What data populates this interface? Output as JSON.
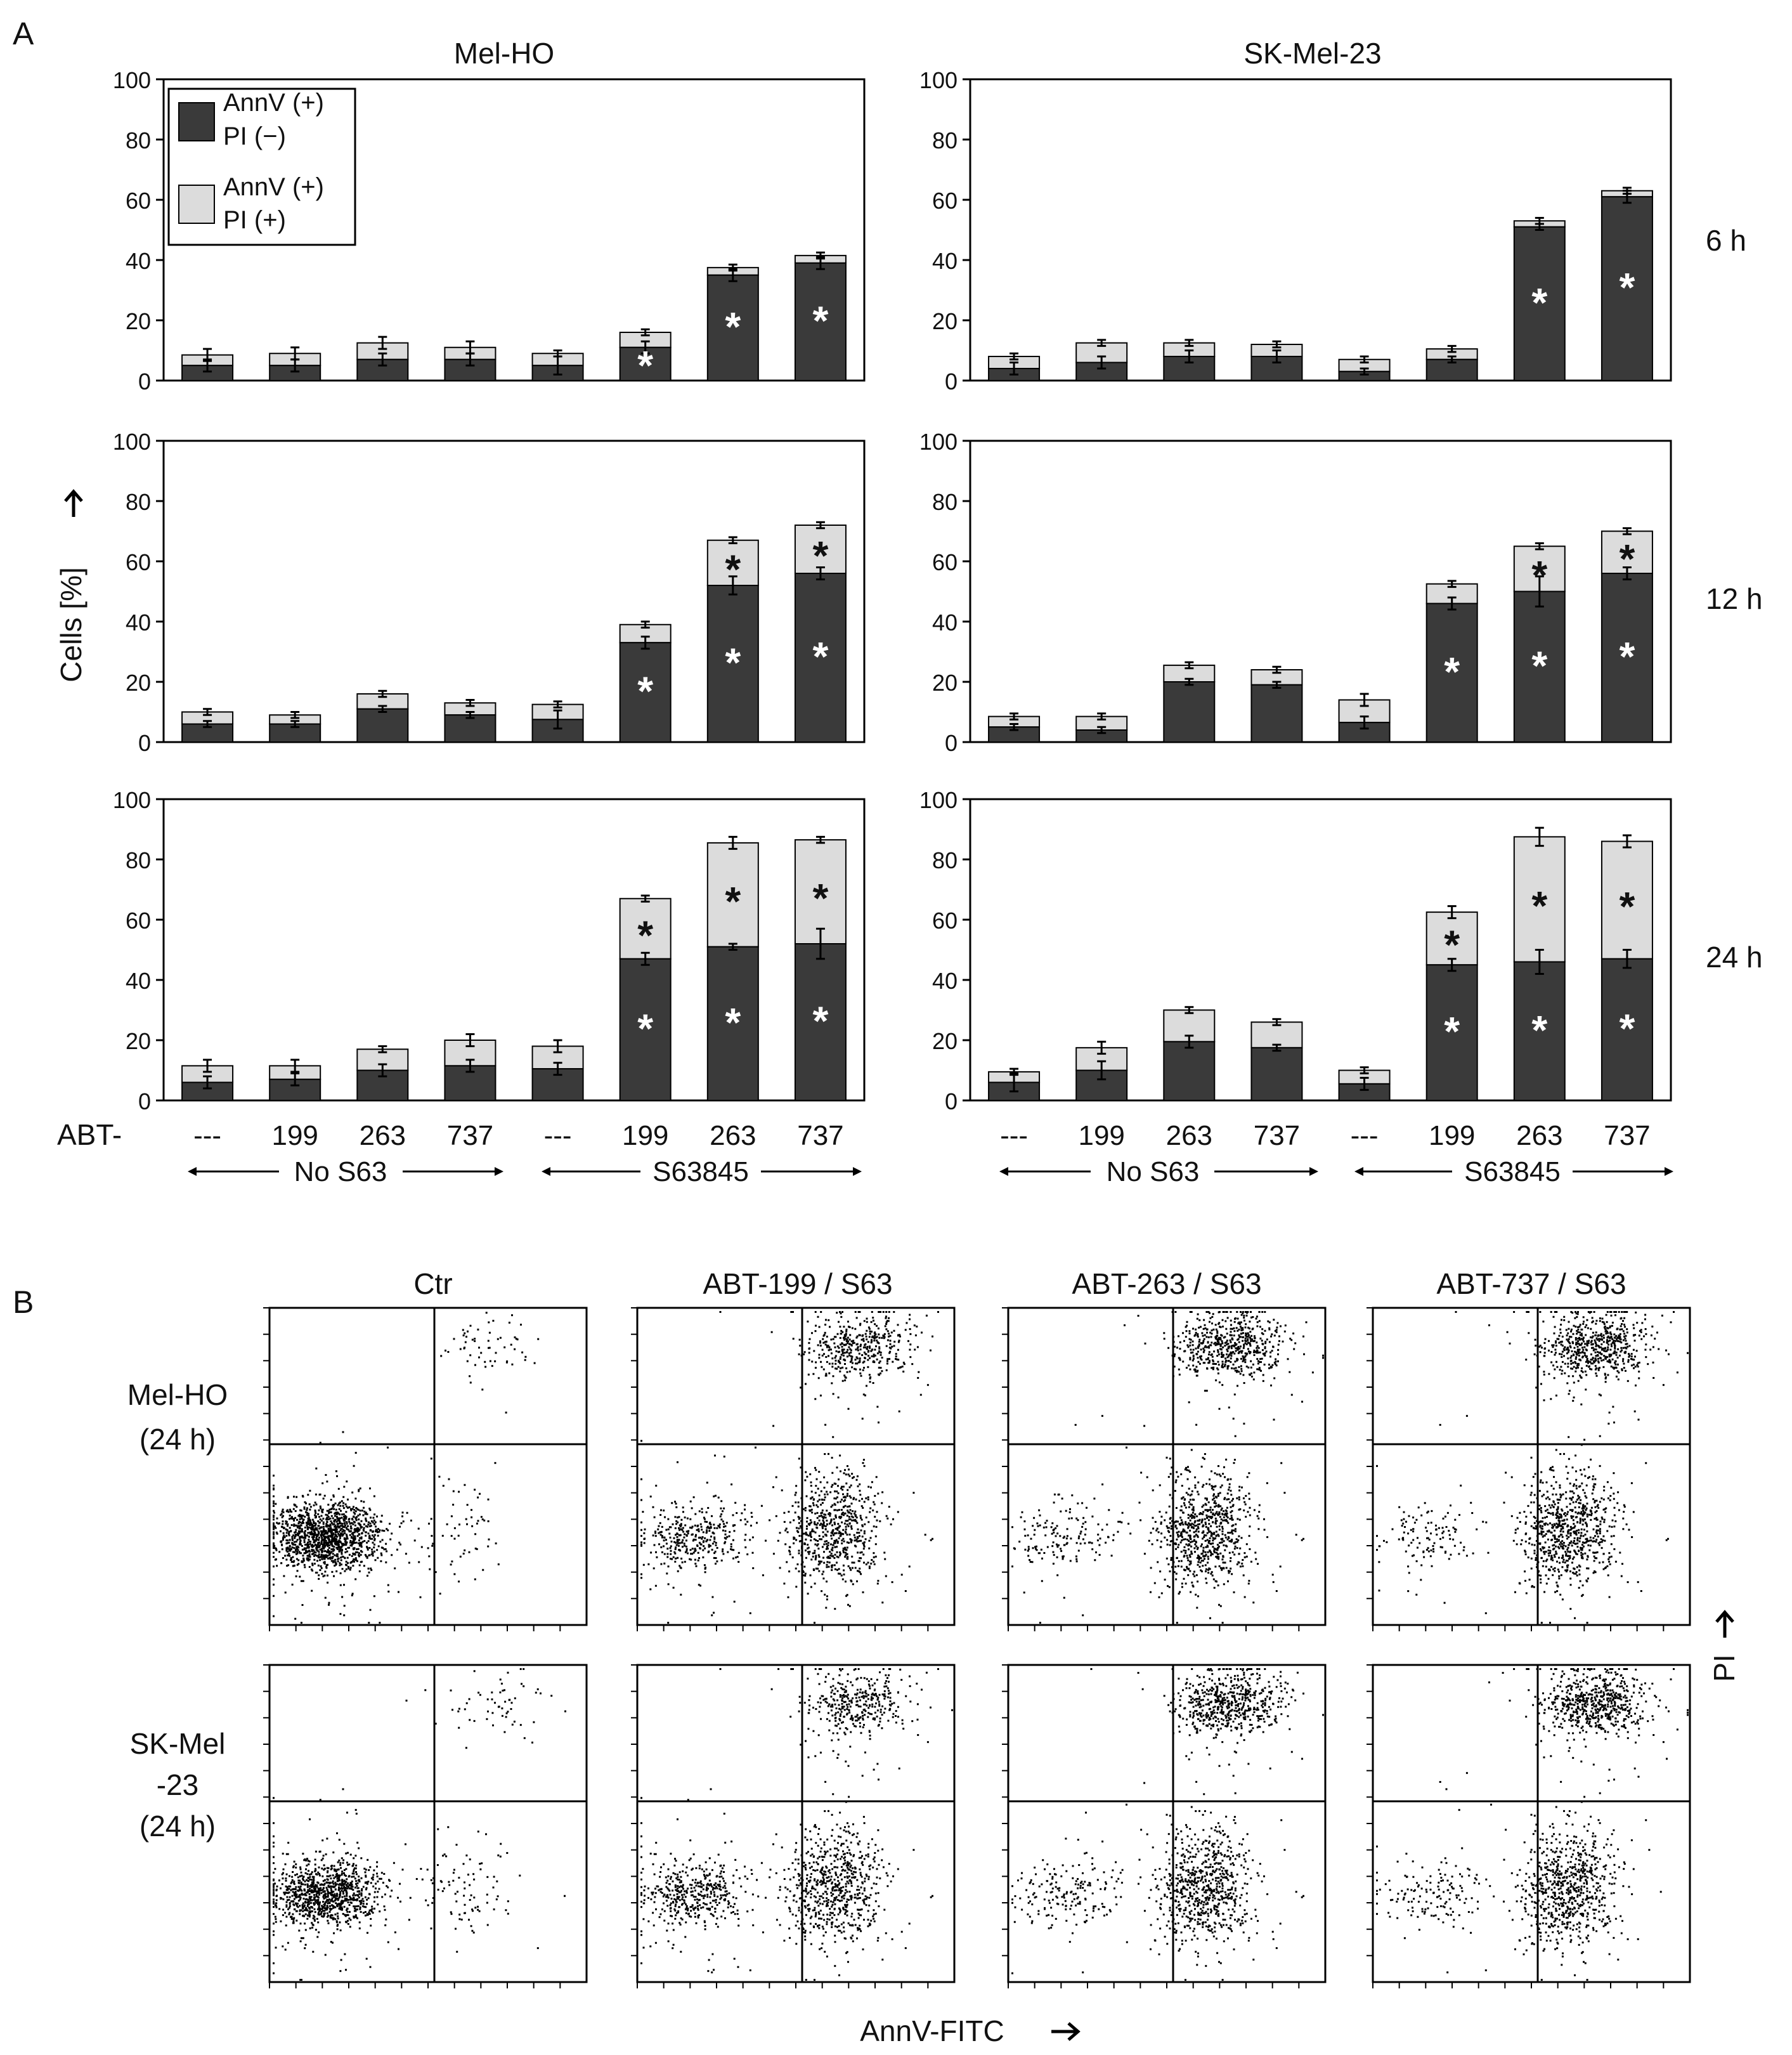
{
  "colors": {
    "dark": "#3a3a3a",
    "light": "#dcdcdc",
    "axis": "#000000"
  },
  "panel_labels": {
    "a": "A",
    "b": "B"
  },
  "panelA": {
    "cell_lines": [
      "Mel-HO",
      "SK-Mel-23"
    ],
    "times": [
      "6 h",
      "12 h",
      "24 h"
    ],
    "ylabel": "Cells [%]",
    "y_ticks": [
      "0",
      "20",
      "40",
      "60",
      "80",
      "100"
    ],
    "row_label": "ABT-",
    "categories": [
      "---",
      "199",
      "263",
      "737",
      "---",
      "199",
      "263",
      "737"
    ],
    "groups": [
      "No S63",
      "S63845"
    ],
    "legend": [
      {
        "line1": "AnnV (+)",
        "line2": "PI (−)"
      },
      {
        "line1": "AnnV (+)",
        "line2": "PI (+)"
      }
    ]
  },
  "panelB": {
    "columns": [
      "Ctr",
      "ABT-199 / S63",
      "ABT-263 / S63",
      "ABT-737 / S63"
    ],
    "rows": [
      [
        "Mel-HO",
        "(24 h)"
      ],
      [
        "SK-Mel",
        "-23",
        "(24 h)"
      ]
    ],
    "xlabel": "AnnV-FITC",
    "ylabel": "PI"
  },
  "chart_data": [
    {
      "type": "bar",
      "title": "Mel-HO",
      "time": "6 h",
      "categories": [
        "---",
        "199",
        "263",
        "737",
        "---",
        "199",
        "263",
        "737"
      ],
      "ylim": [
        0,
        100
      ],
      "series": [
        {
          "name": "AnnV (+) PI (−)",
          "values": [
            5,
            5,
            7,
            7,
            5,
            11,
            35,
            39
          ],
          "err": [
            2,
            2,
            2,
            2,
            3,
            2,
            2,
            2
          ]
        },
        {
          "name": "AnnV (+) PI (+)",
          "values": [
            3.5,
            4,
            5.5,
            4,
            4,
            5,
            2.5,
            2.5
          ],
          "err": [
            2,
            2,
            2,
            2,
            1,
            1,
            1,
            1
          ]
        }
      ],
      "significance": {
        "dark": [
          false,
          false,
          false,
          false,
          false,
          true,
          true,
          true
        ],
        "light": [
          false,
          false,
          false,
          false,
          false,
          false,
          false,
          false
        ]
      }
    },
    {
      "type": "bar",
      "title": "SK-Mel-23",
      "time": "6 h",
      "categories": [
        "---",
        "199",
        "263",
        "737",
        "---",
        "199",
        "263",
        "737"
      ],
      "ylim": [
        0,
        100
      ],
      "series": [
        {
          "name": "AnnV (+) PI (−)",
          "values": [
            4,
            6,
            8,
            8,
            3,
            7,
            51,
            61
          ],
          "err": [
            2,
            2,
            2,
            2,
            1,
            1,
            1,
            2
          ]
        },
        {
          "name": "AnnV (+) PI (+)",
          "values": [
            4,
            6.5,
            4.5,
            4,
            4,
            3.5,
            2,
            2
          ],
          "err": [
            1,
            1,
            1,
            1,
            1,
            1,
            1,
            1
          ]
        }
      ],
      "significance": {
        "dark": [
          false,
          false,
          false,
          false,
          false,
          false,
          true,
          true
        ],
        "light": [
          false,
          false,
          false,
          false,
          false,
          false,
          false,
          false
        ]
      }
    },
    {
      "type": "bar",
      "title": "Mel-HO",
      "time": "12 h",
      "categories": [
        "---",
        "199",
        "263",
        "737",
        "---",
        "199",
        "263",
        "737"
      ],
      "ylim": [
        0,
        100
      ],
      "series": [
        {
          "name": "AnnV (+) PI (−)",
          "values": [
            6,
            6,
            11,
            9,
            7.5,
            33,
            52,
            56
          ],
          "err": [
            1,
            1,
            1,
            1,
            3,
            2,
            3,
            2
          ]
        },
        {
          "name": "AnnV (+) PI (+)",
          "values": [
            4,
            3,
            5,
            4,
            5,
            6,
            15,
            16
          ],
          "err": [
            1,
            1,
            1,
            1,
            1,
            1,
            1,
            1
          ]
        }
      ],
      "significance": {
        "dark": [
          false,
          false,
          false,
          false,
          false,
          true,
          true,
          true
        ],
        "light": [
          false,
          false,
          false,
          false,
          false,
          false,
          true,
          true
        ]
      }
    },
    {
      "type": "bar",
      "title": "SK-Mel-23",
      "time": "12 h",
      "categories": [
        "---",
        "199",
        "263",
        "737",
        "---",
        "199",
        "263",
        "737"
      ],
      "ylim": [
        0,
        100
      ],
      "series": [
        {
          "name": "AnnV (+) PI (−)",
          "values": [
            5,
            4,
            20,
            19,
            6.5,
            46,
            50,
            56
          ],
          "err": [
            1,
            1,
            1,
            1,
            2,
            2,
            5,
            2
          ]
        },
        {
          "name": "AnnV (+) PI (+)",
          "values": [
            3.5,
            4.5,
            5.5,
            5,
            7.5,
            6.5,
            15,
            14
          ],
          "err": [
            1,
            1,
            1,
            1,
            2,
            1,
            1,
            1
          ]
        }
      ],
      "significance": {
        "dark": [
          false,
          false,
          false,
          false,
          false,
          true,
          true,
          true
        ],
        "light": [
          false,
          false,
          false,
          false,
          false,
          false,
          true,
          true
        ]
      }
    },
    {
      "type": "bar",
      "title": "Mel-HO",
      "time": "24 h",
      "categories": [
        "---",
        "199",
        "263",
        "737",
        "---",
        "199",
        "263",
        "737"
      ],
      "ylim": [
        0,
        100
      ],
      "series": [
        {
          "name": "AnnV (+) PI (−)",
          "values": [
            6,
            7,
            10,
            11.5,
            10.5,
            47,
            51,
            52
          ],
          "err": [
            2,
            2,
            2,
            2,
            2,
            2,
            1,
            5
          ]
        },
        {
          "name": "AnnV (+) PI (+)",
          "values": [
            5.5,
            4.5,
            7,
            8.5,
            7.5,
            20,
            34.5,
            34.5
          ],
          "err": [
            2,
            2,
            1,
            2,
            2,
            1,
            2,
            1
          ]
        }
      ],
      "significance": {
        "dark": [
          false,
          false,
          false,
          false,
          false,
          true,
          true,
          true
        ],
        "light": [
          false,
          false,
          false,
          false,
          false,
          true,
          true,
          true
        ]
      }
    },
    {
      "type": "bar",
      "title": "SK-Mel-23",
      "time": "24 h",
      "categories": [
        "---",
        "199",
        "263",
        "737",
        "---",
        "199",
        "263",
        "737"
      ],
      "ylim": [
        0,
        100
      ],
      "series": [
        {
          "name": "AnnV (+) PI (−)",
          "values": [
            6,
            10,
            19.5,
            17.5,
            5.5,
            45,
            46,
            47
          ],
          "err": [
            3,
            3,
            2,
            1,
            2,
            2,
            4,
            3
          ]
        },
        {
          "name": "AnnV (+) PI (+)",
          "values": [
            3.5,
            7.5,
            10.5,
            8.5,
            4.5,
            17.5,
            41.5,
            39
          ],
          "err": [
            1,
            2,
            1,
            1,
            1,
            2,
            3,
            2
          ]
        }
      ],
      "significance": {
        "dark": [
          false,
          false,
          false,
          false,
          false,
          true,
          true,
          true
        ],
        "light": [
          false,
          false,
          false,
          false,
          false,
          true,
          true,
          true
        ]
      }
    },
    {
      "type": "scatter",
      "title": "Ctr",
      "row": "Mel-HO (24 h)",
      "xlabel": "AnnV-FITC",
      "ylabel": "PI",
      "populations": [
        {
          "region": "AnnV− PI−",
          "weight": 0.92
        },
        {
          "region": "AnnV+ PI−",
          "weight": 0.04
        },
        {
          "region": "AnnV+ PI+",
          "weight": 0.04
        }
      ]
    },
    {
      "type": "scatter",
      "title": "ABT-199 / S63",
      "row": "Mel-HO (24 h)",
      "xlabel": "AnnV-FITC",
      "ylabel": "PI",
      "populations": [
        {
          "region": "AnnV− PI−",
          "weight": 0.25
        },
        {
          "region": "AnnV+ PI−",
          "weight": 0.45
        },
        {
          "region": "AnnV+ PI+",
          "weight": 0.3
        }
      ]
    },
    {
      "type": "scatter",
      "title": "ABT-263 / S63",
      "row": "Mel-HO (24 h)",
      "xlabel": "AnnV-FITC",
      "ylabel": "PI",
      "populations": [
        {
          "region": "AnnV− PI−",
          "weight": 0.1
        },
        {
          "region": "AnnV+ PI−",
          "weight": 0.5
        },
        {
          "region": "AnnV+ PI+",
          "weight": 0.4
        }
      ]
    },
    {
      "type": "scatter",
      "title": "ABT-737 / S63",
      "row": "Mel-HO (24 h)",
      "xlabel": "AnnV-FITC",
      "ylabel": "PI",
      "populations": [
        {
          "region": "AnnV− PI−",
          "weight": 0.08
        },
        {
          "region": "AnnV+ PI−",
          "weight": 0.5
        },
        {
          "region": "AnnV+ PI+",
          "weight": 0.42
        }
      ]
    },
    {
      "type": "scatter",
      "title": "Ctr",
      "row": "SK-Mel -23 (24 h)",
      "xlabel": "AnnV-FITC",
      "ylabel": "PI",
      "populations": [
        {
          "region": "AnnV− PI−",
          "weight": 0.9
        },
        {
          "region": "AnnV+ PI−",
          "weight": 0.06
        },
        {
          "region": "AnnV+ PI+",
          "weight": 0.04
        }
      ]
    },
    {
      "type": "scatter",
      "title": "ABT-199 / S63",
      "row": "SK-Mel -23 (24 h)",
      "xlabel": "AnnV-FITC",
      "ylabel": "PI",
      "populations": [
        {
          "region": "AnnV− PI−",
          "weight": 0.3
        },
        {
          "region": "AnnV+ PI−",
          "weight": 0.45
        },
        {
          "region": "AnnV+ PI+",
          "weight": 0.25
        }
      ]
    },
    {
      "type": "scatter",
      "title": "ABT-263 / S63",
      "row": "SK-Mel -23 (24 h)",
      "xlabel": "AnnV-FITC",
      "ylabel": "PI",
      "populations": [
        {
          "region": "AnnV− PI−",
          "weight": 0.12
        },
        {
          "region": "AnnV+ PI−",
          "weight": 0.48
        },
        {
          "region": "AnnV+ PI+",
          "weight": 0.4
        }
      ]
    },
    {
      "type": "scatter",
      "title": "ABT-737 / S63",
      "row": "SK-Mel -23 (24 h)",
      "xlabel": "AnnV-FITC",
      "ylabel": "PI",
      "populations": [
        {
          "region": "AnnV− PI−",
          "weight": 0.1
        },
        {
          "region": "AnnV+ PI−",
          "weight": 0.48
        },
        {
          "region": "AnnV+ PI+",
          "weight": 0.42
        }
      ]
    }
  ]
}
